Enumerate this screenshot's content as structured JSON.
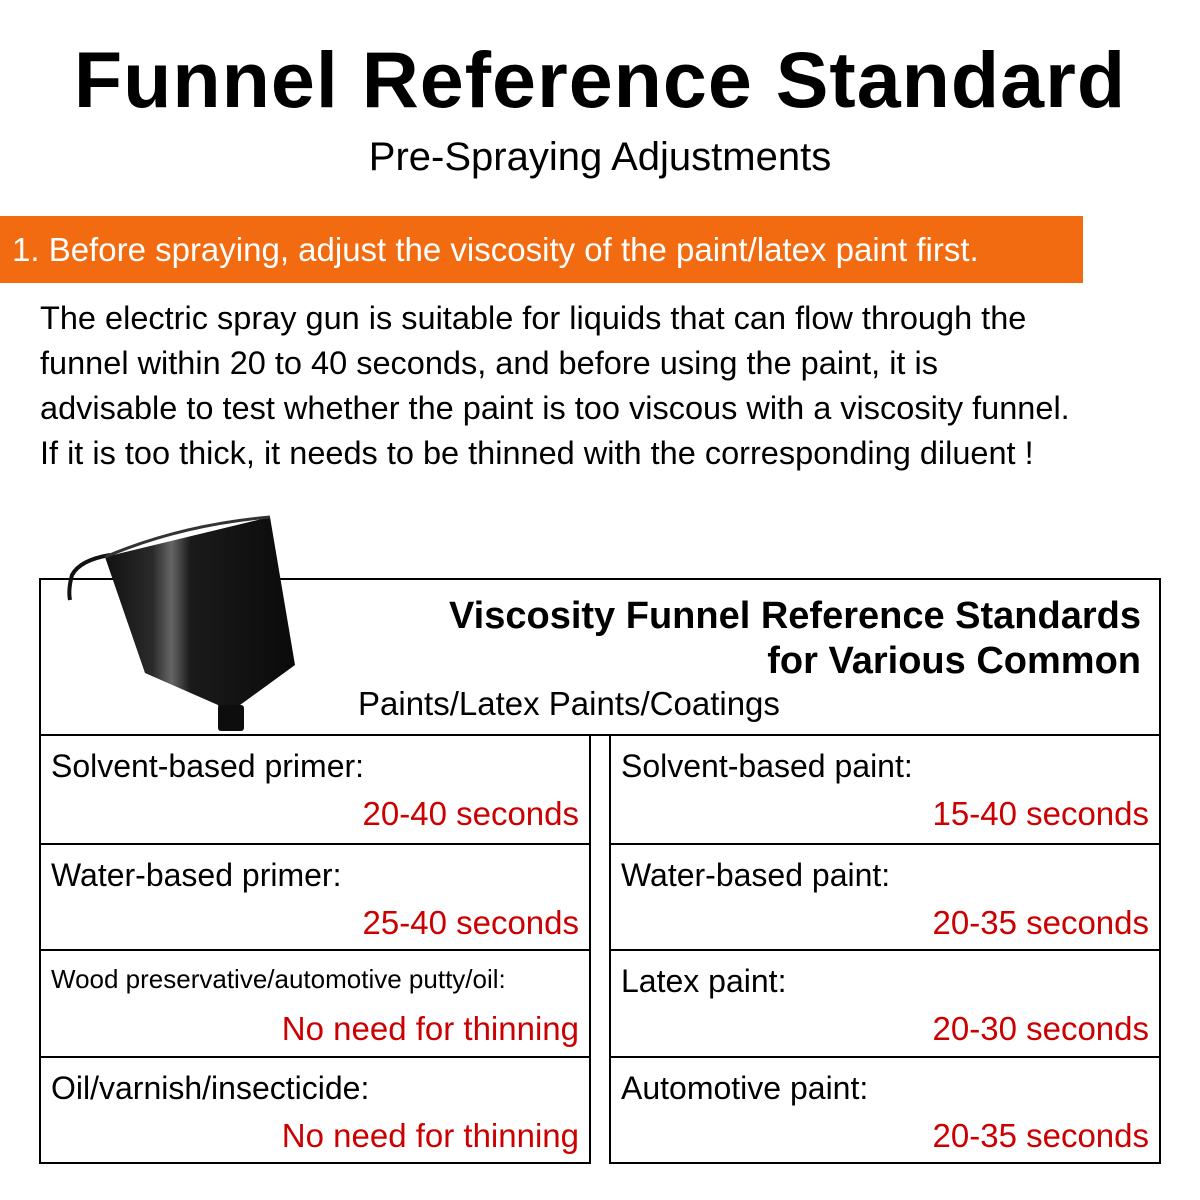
{
  "title": "Funnel Reference Standard",
  "subtitle": "Pre-Spraying Adjustments",
  "step_banner": "1. Before spraying, adjust the viscosity of the paint/latex paint first.",
  "accent_color": "#f26b11",
  "value_color": "#cc0000",
  "paragraph_lines": [
    "The electric spray gun is suitable for liquids that can flow through the",
    "funnel within 20 to 40 seconds, and before using the paint, it is",
    "advisable to test whether the paint is too viscous with a viscosity funnel.",
    "If it is too thick, it needs to be thinned with the corresponding diluent !"
  ],
  "table": {
    "heading_line1": "Viscosity Funnel Reference Standards",
    "heading_line2": "for Various Common",
    "heading_sub": "Paints/Latex Paints/Coatings",
    "left": [
      {
        "label": "Solvent-based primer:",
        "value": "20-40 seconds"
      },
      {
        "label": "Water-based primer:",
        "value": "25-40 seconds"
      },
      {
        "label": "Wood preservative/automotive putty/oil:",
        "value": "No need for thinning"
      },
      {
        "label": "Oil/varnish/insecticide:",
        "value": "No need for thinning"
      }
    ],
    "right": [
      {
        "label": "Solvent-based paint:",
        "value": "15-40 seconds"
      },
      {
        "label": "Water-based paint:",
        "value": "20-35 seconds"
      },
      {
        "label": "Latex paint:",
        "value": "20-30 seconds"
      },
      {
        "label": "Automotive paint:",
        "value": "20-35 seconds"
      }
    ]
  }
}
